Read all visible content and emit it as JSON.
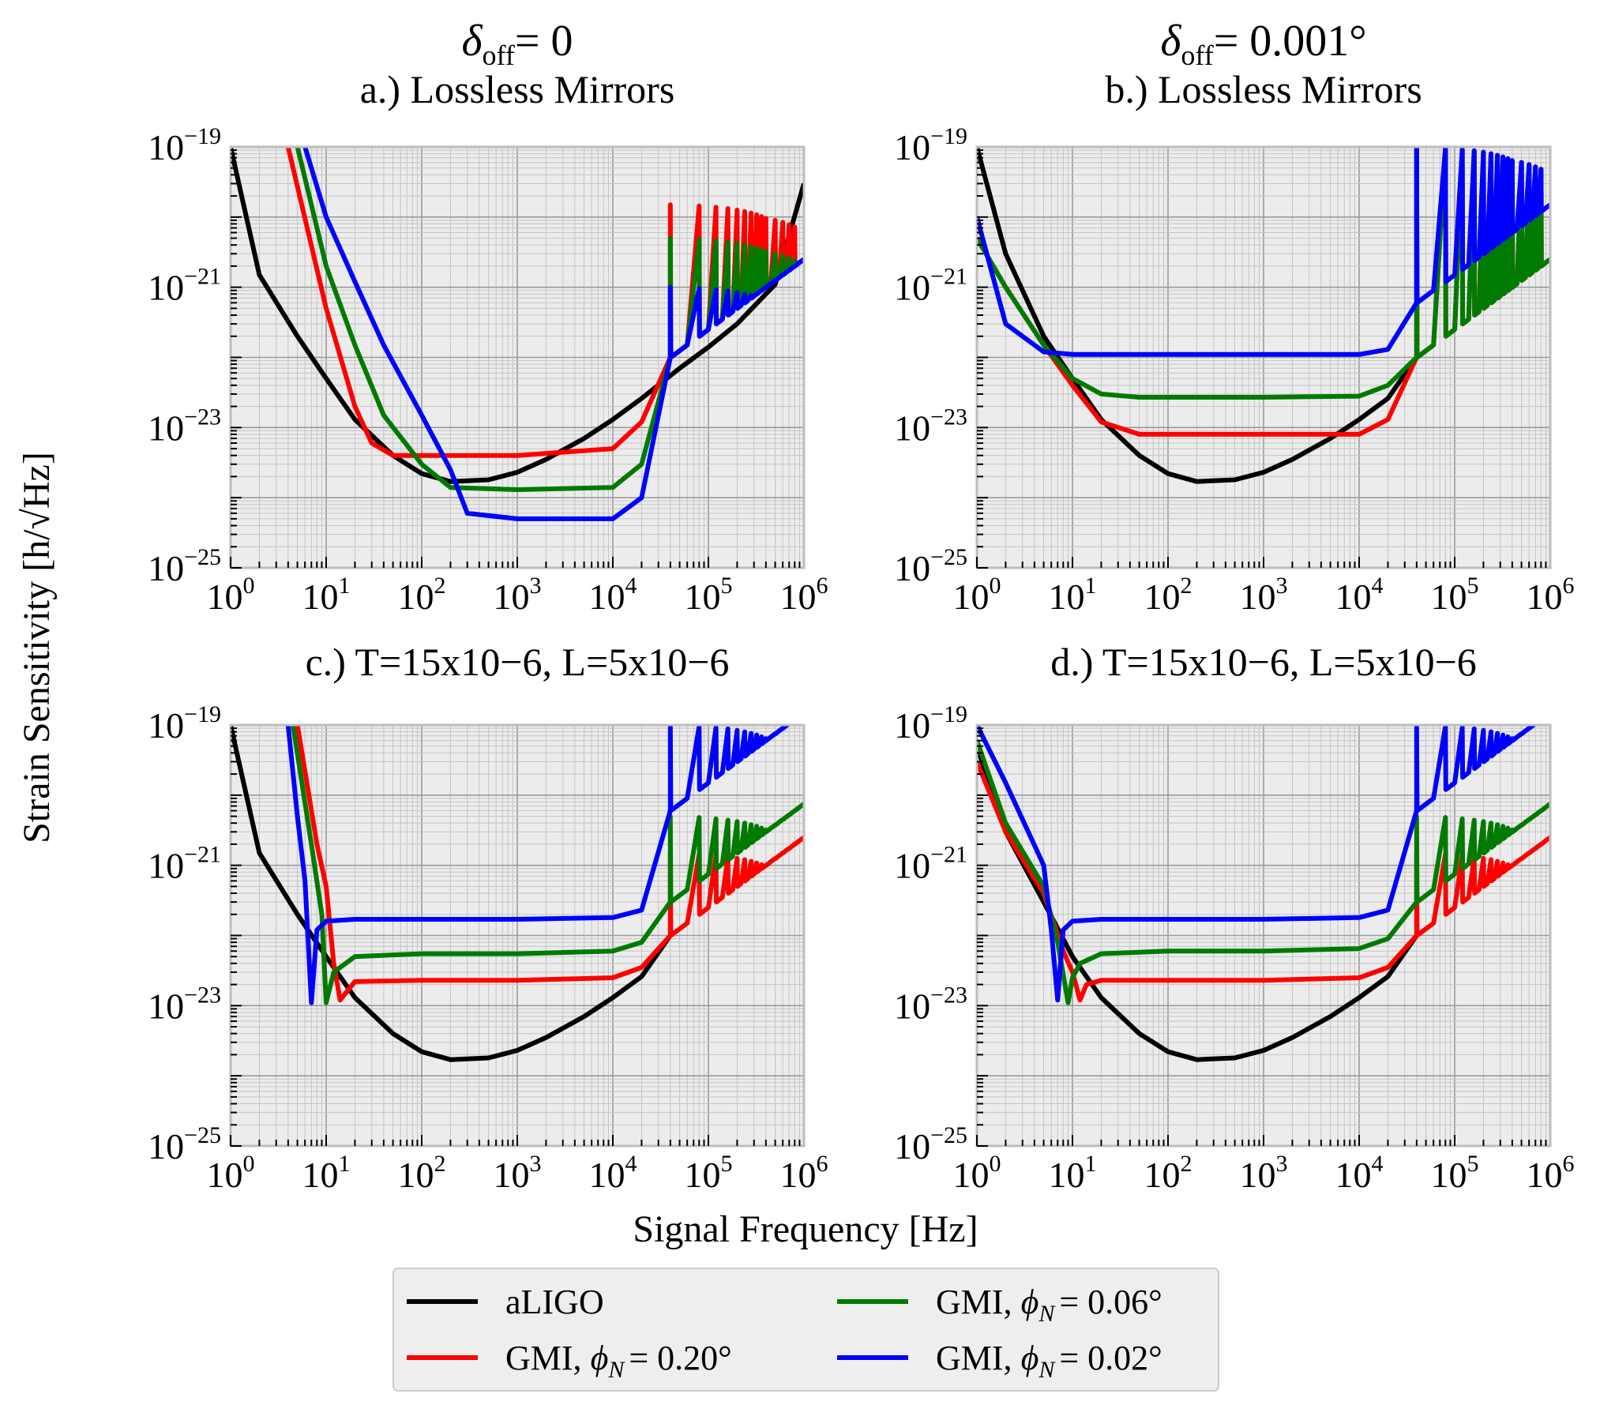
{
  "column_headers": [
    {
      "symbol": "δ",
      "subscript": "off",
      "value": "= 0"
    },
    {
      "symbol": "δ",
      "subscript": "off",
      "value": "= 0.001°"
    }
  ],
  "axes": {
    "xlabel": "Signal Frequency [Hz]",
    "ylabel": "Strain Sensitivity [h/√Hz]",
    "xticks": [
      {
        "base": "10",
        "exp": "0"
      },
      {
        "base": "10",
        "exp": "1"
      },
      {
        "base": "10",
        "exp": "2"
      },
      {
        "base": "10",
        "exp": "3"
      },
      {
        "base": "10",
        "exp": "4"
      },
      {
        "base": "10",
        "exp": "5"
      },
      {
        "base": "10",
        "exp": "6"
      }
    ],
    "yticks": [
      {
        "base": "10",
        "exp": "−19"
      },
      {
        "base": "10",
        "exp": "−21"
      },
      {
        "base": "10",
        "exp": "−23"
      },
      {
        "base": "10",
        "exp": "−25"
      }
    ]
  },
  "legend": {
    "items": [
      {
        "label": "aLIGO",
        "prefix": "",
        "phi": "",
        "color": "#000000"
      },
      {
        "label": "",
        "prefix": "GMI, ",
        "phi": "= 0.20°",
        "color": "#ff0000"
      },
      {
        "label": "",
        "prefix": "GMI, ",
        "phi": "= 0.06°",
        "color": "#007a00"
      },
      {
        "label": "",
        "prefix": "GMI, ",
        "phi": "= 0.02°",
        "color": "#0000ff"
      }
    ],
    "phi_symbol": "ϕ",
    "phi_sub": "N"
  },
  "chart_data": [
    {
      "type": "line",
      "title": "a.) Lossless Mirrors",
      "xscale": "log",
      "yscale": "log",
      "xlim": [
        1,
        1000000
      ],
      "ylim": [
        1e-25,
        1e-19
      ],
      "grid": true,
      "series": [
        {
          "name": "aLIGO",
          "color": "#000000",
          "x": [
            1,
            2,
            5,
            10,
            20,
            50,
            100,
            200,
            500,
            1000,
            2000,
            5000,
            10000,
            20000,
            50000,
            100000,
            200000,
            500000,
            1000000
          ],
          "y": [
            1e-19,
            1.5e-21,
            2e-22,
            5e-23,
            1.3e-23,
            4e-24,
            2.2e-24,
            1.7e-24,
            1.8e-24,
            2.3e-24,
            3.5e-24,
            7e-24,
            1.3e-23,
            2.6e-23,
            7e-23,
            1.4e-22,
            3e-22,
            1.1e-21,
            3e-20
          ]
        },
        {
          "name": "GMI, ϕN = 0.20°",
          "color": "#ff0000",
          "x": [
            4,
            10,
            20,
            30,
            50,
            100,
            1000,
            10000,
            20000,
            40000
          ],
          "y": [
            1e-19,
            5e-22,
            2e-23,
            6e-24,
            4e-24,
            4e-24,
            4e-24,
            5e-24,
            1.2e-23,
            1e-22
          ],
          "resonance_peaks": [
            40000,
            80000,
            120000,
            160000,
            200000,
            240000,
            280000,
            320000,
            360000,
            400000,
            500000,
            600000,
            700000,
            800000
          ],
          "peak_max": 1.5e-20
        },
        {
          "name": "GMI, ϕN = 0.06°",
          "color": "#007a00",
          "x": [
            5,
            10,
            20,
            40,
            100,
            200,
            1000,
            10000,
            20000,
            40000
          ],
          "y": [
            1e-19,
            2e-21,
            1.5e-22,
            1.5e-23,
            3e-24,
            1.4e-24,
            1.3e-24,
            1.4e-24,
            3e-24,
            1e-22
          ],
          "resonance_peaks": [
            40000,
            80000,
            120000,
            160000,
            200000,
            240000,
            280000,
            320000,
            360000,
            400000,
            500000,
            600000,
            700000,
            800000
          ],
          "peak_max": 5e-21
        },
        {
          "name": "GMI, ϕN = 0.02°",
          "color": "#0000ff",
          "x": [
            6,
            10,
            20,
            40,
            100,
            200,
            300,
            1000,
            10000,
            20000,
            40000
          ],
          "y": [
            1e-19,
            1e-20,
            1.2e-21,
            1.5e-22,
            1.5e-23,
            2.5e-24,
            6e-25,
            5e-25,
            5e-25,
            1e-24,
            1e-22
          ],
          "resonance_peaks": [
            40000,
            80000,
            120000,
            160000,
            200000,
            240000,
            280000,
            320000,
            360000,
            400000,
            500000,
            600000,
            700000,
            800000
          ],
          "peak_max": 1e-21
        }
      ]
    },
    {
      "type": "line",
      "title": "b.) Lossless Mirrors",
      "xscale": "log",
      "yscale": "log",
      "xlim": [
        1,
        1000000
      ],
      "ylim": [
        1e-25,
        1e-19
      ],
      "grid": true,
      "series": [
        {
          "name": "aLIGO",
          "color": "#000000",
          "x": [
            1,
            2,
            5,
            10,
            20,
            50,
            100,
            200,
            500,
            1000,
            2000,
            5000,
            10000,
            20000,
            40000
          ],
          "y": [
            1e-19,
            3e-21,
            2e-22,
            5e-23,
            1.3e-23,
            4e-24,
            2.2e-24,
            1.7e-24,
            1.8e-24,
            2.3e-24,
            3.5e-24,
            7e-24,
            1.3e-23,
            2.6e-23,
            1e-22
          ]
        },
        {
          "name": "GMI, ϕN = 0.20°",
          "color": "#ff0000",
          "x": [
            1,
            2,
            5,
            10,
            20,
            50,
            1000,
            10000,
            20000,
            40000
          ],
          "y": [
            5e-21,
            1e-21,
            1.5e-22,
            4e-23,
            1.2e-23,
            8e-24,
            8e-24,
            8e-24,
            1.3e-23,
            1e-22
          ],
          "resonance_peaks": [
            40000,
            80000,
            120000,
            160000,
            200000,
            240000,
            280000,
            320000,
            360000,
            400000,
            500000,
            600000,
            700000,
            800000
          ],
          "peak_max": 1e-19
        },
        {
          "name": "GMI, ϕN = 0.06°",
          "color": "#007a00",
          "x": [
            1,
            2,
            5,
            10,
            20,
            50,
            1000,
            10000,
            20000,
            40000
          ],
          "y": [
            5e-21,
            1e-21,
            1.5e-22,
            5e-23,
            3e-23,
            2.7e-23,
            2.7e-23,
            2.8e-23,
            4e-23,
            1e-22
          ],
          "resonance_peaks": [
            40000,
            80000,
            120000,
            160000,
            200000,
            240000,
            280000,
            320000,
            360000,
            400000,
            500000,
            600000,
            700000,
            800000
          ],
          "peak_max": 1e-19
        },
        {
          "name": "GMI, ϕN = 0.02°",
          "color": "#0000ff",
          "x": [
            1,
            2,
            5,
            10,
            1000,
            10000,
            20000,
            40000
          ],
          "y": [
            1e-20,
            3e-22,
            1.2e-22,
            1.1e-22,
            1.1e-22,
            1.1e-22,
            1.3e-22,
            6e-22
          ],
          "resonance_peaks": [
            40000,
            80000,
            120000,
            160000,
            200000,
            240000,
            280000,
            320000,
            360000,
            400000,
            500000,
            600000,
            700000,
            800000
          ],
          "peak_max": 1e-19
        }
      ]
    },
    {
      "type": "line",
      "title": "c.) T=15x10−6, L=5x10−6",
      "xscale": "log",
      "yscale": "log",
      "xlim": [
        1,
        1000000
      ],
      "ylim": [
        1e-25,
        1e-19
      ],
      "grid": true,
      "series": [
        {
          "name": "aLIGO",
          "color": "#000000",
          "x": [
            1,
            2,
            5,
            10,
            20,
            50,
            100,
            200,
            500,
            1000,
            2000,
            5000,
            10000,
            20000,
            40000
          ],
          "y": [
            1e-19,
            1.5e-21,
            2e-22,
            5e-23,
            1.3e-23,
            4e-24,
            2.2e-24,
            1.7e-24,
            1.8e-24,
            2.3e-24,
            3.5e-24,
            7e-24,
            1.3e-23,
            2.6e-23,
            1e-22
          ]
        },
        {
          "name": "GMI, ϕN = 0.20°",
          "color": "#ff0000",
          "x": [
            5,
            8,
            10,
            12,
            14,
            20,
            100,
            1000,
            10000,
            20000,
            40000
          ],
          "y": [
            1e-19,
            2e-21,
            5e-22,
            4e-23,
            1.2e-23,
            2.2e-23,
            2.3e-23,
            2.3e-23,
            2.5e-23,
            3.5e-23,
            1e-22
          ],
          "resonance_peaks": [
            40000,
            80000,
            120000,
            160000,
            200000,
            240000,
            280000,
            320000,
            360000,
            400000,
            500000,
            600000,
            700000,
            800000
          ],
          "peak_max": 1.5e-21
        },
        {
          "name": "GMI, ϕN = 0.06°",
          "color": "#007a00",
          "x": [
            4.5,
            7,
            9,
            10,
            12,
            20,
            100,
            1000,
            10000,
            20000,
            40000
          ],
          "y": [
            1e-19,
            2e-21,
            2e-22,
            1.1e-23,
            3e-23,
            5e-23,
            5.5e-23,
            5.5e-23,
            6e-23,
            8e-23,
            3e-22
          ],
          "resonance_peaks": [
            40000,
            80000,
            120000,
            160000,
            200000,
            240000,
            280000,
            320000,
            360000,
            400000,
            500000,
            600000,
            700000,
            800000
          ],
          "peak_max": 5e-21
        },
        {
          "name": "GMI, ϕN = 0.02°",
          "color": "#0000ff",
          "x": [
            4,
            5,
            6,
            7,
            8,
            10,
            20,
            100,
            1000,
            10000,
            20000,
            40000
          ],
          "y": [
            1e-19,
            5e-21,
            6e-22,
            1.1e-23,
            1.2e-22,
            1.6e-22,
            1.7e-22,
            1.7e-22,
            1.7e-22,
            1.8e-22,
            2.3e-22,
            6e-21
          ],
          "resonance_peaks": [
            40000,
            80000,
            120000,
            160000,
            200000,
            240000,
            280000,
            320000,
            360000,
            400000,
            500000,
            600000,
            700000,
            800000
          ],
          "peak_max": 1e-19
        }
      ]
    },
    {
      "type": "line",
      "title": "d.) T=15x10−6, L=5x10−6",
      "xscale": "log",
      "yscale": "log",
      "xlim": [
        1,
        1000000
      ],
      "ylim": [
        1e-25,
        1e-19
      ],
      "grid": true,
      "series": [
        {
          "name": "aLIGO",
          "color": "#000000",
          "x": [
            1,
            2,
            5,
            10,
            20,
            50,
            100,
            200,
            500,
            1000,
            2000,
            5000,
            10000,
            20000,
            40000
          ],
          "y": [
            5e-20,
            3e-21,
            3e-22,
            5e-23,
            1.3e-23,
            4e-24,
            2.2e-24,
            1.7e-24,
            1.8e-24,
            2.3e-24,
            3.5e-24,
            7e-24,
            1.3e-23,
            2.6e-23,
            1e-22
          ]
        },
        {
          "name": "GMI, ϕN = 0.20°",
          "color": "#ff0000",
          "x": [
            1,
            2,
            5,
            8,
            10,
            12,
            14,
            20,
            100,
            1000,
            10000,
            20000,
            40000
          ],
          "y": [
            3e-20,
            3e-21,
            4e-22,
            6e-23,
            3e-23,
            1.2e-23,
            2e-23,
            2.3e-23,
            2.3e-23,
            2.3e-23,
            2.5e-23,
            3.5e-23,
            1e-22
          ],
          "resonance_peaks": [
            40000,
            80000,
            120000,
            160000,
            200000,
            240000,
            280000,
            320000,
            360000,
            400000,
            500000,
            600000,
            700000,
            800000
          ],
          "peak_max": 1.5e-21
        },
        {
          "name": "GMI, ϕN = 0.06°",
          "color": "#007a00",
          "x": [
            1,
            2,
            5,
            7,
            9,
            10,
            12,
            20,
            100,
            1000,
            10000,
            20000,
            40000
          ],
          "y": [
            6e-20,
            4e-21,
            5e-22,
            8e-23,
            1.1e-23,
            2.5e-23,
            4e-23,
            5.5e-23,
            6e-23,
            6e-23,
            6.5e-23,
            9e-23,
            3e-22
          ],
          "resonance_peaks": [
            40000,
            80000,
            120000,
            160000,
            200000,
            240000,
            280000,
            320000,
            360000,
            400000,
            500000,
            600000,
            700000,
            800000
          ],
          "peak_max": 5e-21
        },
        {
          "name": "GMI, ϕN = 0.02°",
          "color": "#0000ff",
          "x": [
            1,
            2,
            5,
            6,
            7,
            8,
            10,
            20,
            100,
            1000,
            10000,
            20000,
            40000
          ],
          "y": [
            1e-19,
            1.5e-20,
            1e-21,
            1.2e-22,
            1.2e-23,
            1.2e-22,
            1.6e-22,
            1.7e-22,
            1.7e-22,
            1.7e-22,
            1.8e-22,
            2.3e-22,
            6e-21
          ],
          "resonance_peaks": [
            40000,
            80000,
            120000,
            160000,
            200000,
            240000,
            280000,
            320000,
            360000,
            400000,
            500000,
            600000,
            700000,
            800000
          ],
          "peak_max": 1e-19
        }
      ]
    }
  ]
}
